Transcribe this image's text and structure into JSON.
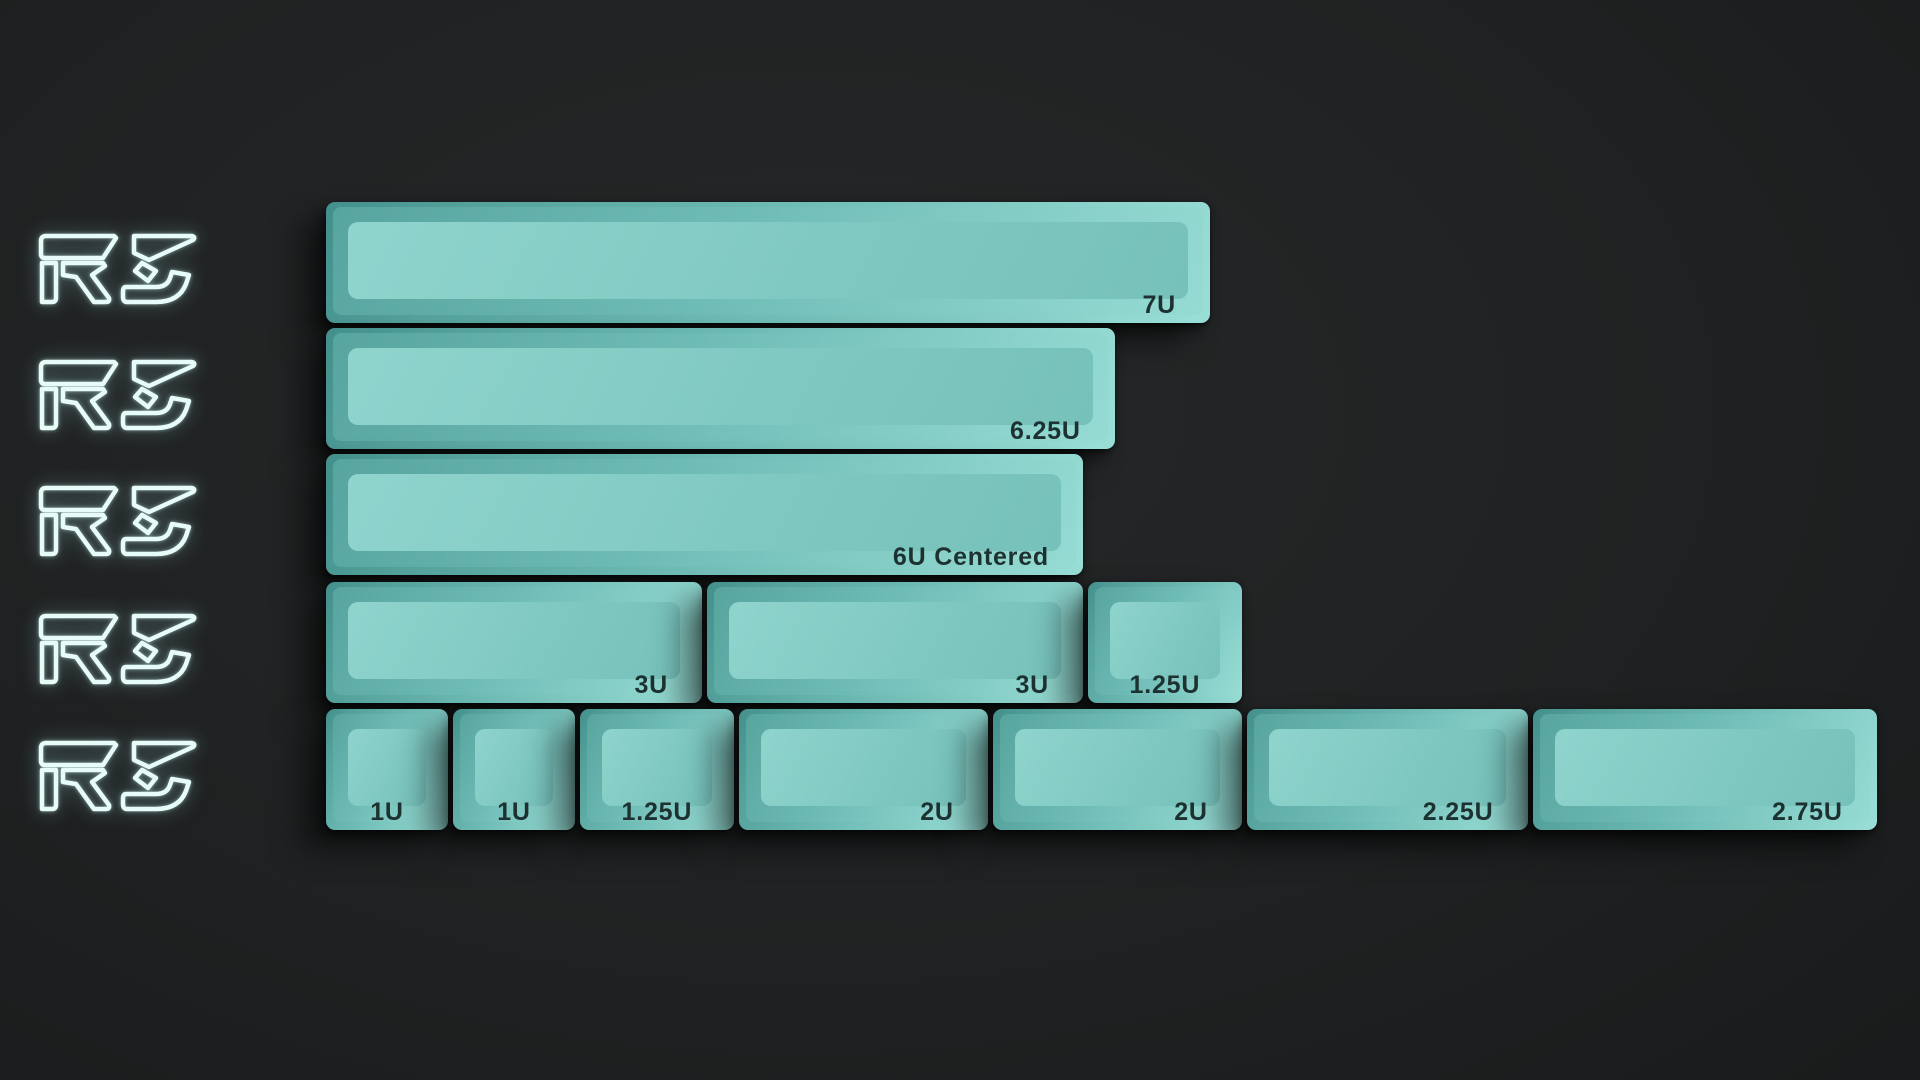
{
  "scene": {
    "background": "#1f2122",
    "description": "dark studio backdrop"
  },
  "logo": {
    "label": "R3",
    "color": "#e7fcf9",
    "count": 5
  },
  "keycaps": {
    "palette": {
      "face": "#7fc8c1",
      "face_light": "#8fd4cd",
      "bevel_dark": "#58a5a0",
      "bevel_light": "#95dbd3",
      "wall_dark": "#428f8c",
      "wall_light": "#9adfd7",
      "legend": "#1d3230"
    },
    "rows": [
      {
        "keys": [
          {
            "label": "7U",
            "units": 7
          }
        ]
      },
      {
        "keys": [
          {
            "label": "6.25U",
            "units": 6.25
          }
        ]
      },
      {
        "keys": [
          {
            "label": "6U Centered",
            "units": 6
          }
        ]
      },
      {
        "keys": [
          {
            "label": "3U",
            "units": 3
          },
          {
            "label": "3U",
            "units": 3
          },
          {
            "label": "1.25U",
            "units": 1.25
          }
        ]
      },
      {
        "keys": [
          {
            "label": "1U",
            "units": 1
          },
          {
            "label": "1U",
            "units": 1
          },
          {
            "label": "1.25U",
            "units": 1.25
          },
          {
            "label": "2U",
            "units": 2
          },
          {
            "label": "2U",
            "units": 2
          },
          {
            "label": "2.25U",
            "units": 2.25
          },
          {
            "label": "2.75U",
            "units": 2.75
          }
        ]
      }
    ]
  }
}
